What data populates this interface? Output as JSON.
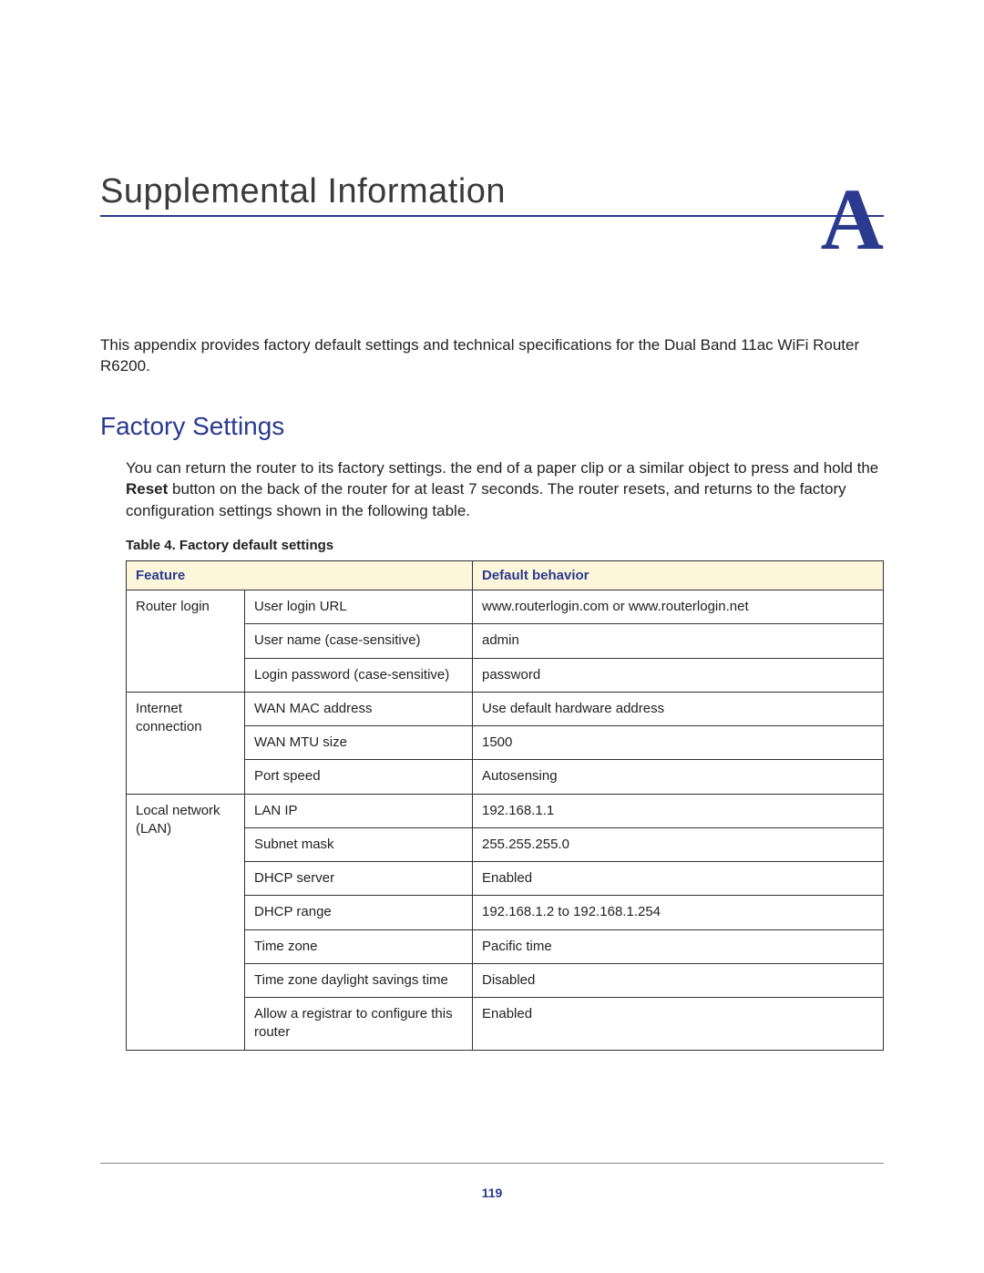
{
  "header": {
    "chapter_title": "Supplemental Information",
    "appendix_letter": "A"
  },
  "intro_text": "This appendix provides factory default settings and technical specifications for the Dual Band 11ac WiFi Router R6200.",
  "section": {
    "title": "Factory Settings",
    "para_before_bold": "You can return the router to its factory settings.  the end of a paper clip or a similar object to press and hold the ",
    "bold_word": "Reset",
    "para_after_bold": " button on the back of the router for at least 7 seconds. The router resets, and returns to the factory configuration settings shown in the following table."
  },
  "table": {
    "caption": "Table 4.  Factory default settings",
    "header_col1": "Feature",
    "header_col2": "Default behavior",
    "groups": [
      {
        "label": "Router login",
        "rows": [
          {
            "setting": "User login URL",
            "value": "www.routerlogin.com or www.routerlogin.net"
          },
          {
            "setting": "User name (case-sensitive)",
            "value": "admin"
          },
          {
            "setting": "Login password (case-sensitive)",
            "value": "password"
          }
        ]
      },
      {
        "label": "Internet connection",
        "rows": [
          {
            "setting": "WAN MAC address",
            "value": "Use default hardware address"
          },
          {
            "setting": "WAN MTU size",
            "value": "1500"
          },
          {
            "setting": "Port speed",
            "value": "Autosensing"
          }
        ]
      },
      {
        "label": "Local network (LAN)",
        "rows": [
          {
            "setting": "LAN IP",
            "value": "192.168.1.1"
          },
          {
            "setting": "Subnet mask",
            "value": "255.255.255.0"
          },
          {
            "setting": "DHCP server",
            "value": "Enabled"
          },
          {
            "setting": "DHCP range",
            "value": "192.168.1.2 to 192.168.1.254"
          },
          {
            "setting": "Time zone",
            "value": "Pacific time"
          },
          {
            "setting": "Time zone daylight savings time",
            "value": "Disabled"
          },
          {
            "setting": "Allow a registrar to configure this router",
            "value": "Enabled"
          }
        ]
      }
    ]
  },
  "page_number": "119",
  "colors": {
    "accent": "#2a3b8f",
    "header_bg": "#fdf6da",
    "text": "#222222",
    "rule": "#888888"
  }
}
